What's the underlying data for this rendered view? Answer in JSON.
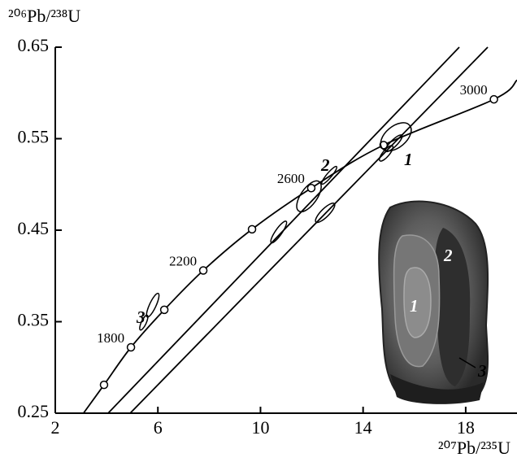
{
  "chart_data": {
    "type": "scatter",
    "x_label": "²⁰⁷Pb/²³⁵U",
    "y_label": "²⁰⁶Pb/²³⁸U",
    "xlim": [
      2,
      20
    ],
    "ylim": [
      0.25,
      0.65
    ],
    "xticks": [
      2,
      6,
      10,
      14,
      18
    ],
    "yticks": [
      0.25,
      0.35,
      0.45,
      0.55,
      0.65
    ],
    "series": [
      {
        "type": "line",
        "color": "#000000",
        "x": [
          3.1,
          3.9,
          4.95,
          6.25,
          7.77,
          9.67,
          11.98,
          14.8,
          19.1,
          20
        ],
        "values": [
          0.25,
          0.281,
          0.322,
          0.363,
          0.406,
          0.451,
          0.496,
          0.543,
          0.593,
          0.614
        ]
      },
      {
        "type": "line",
        "color": "#000000",
        "x": [
          4.06,
          17.75
        ],
        "values": [
          0.25,
          0.65
        ]
      },
      {
        "type": "line",
        "color": "#000000",
        "x": [
          4.92,
          18.86
        ],
        "values": [
          0.25,
          0.65
        ]
      },
      {
        "type": "scatter",
        "color": "#000000",
        "x": [
          3.9,
          4.95,
          6.25,
          7.77,
          9.67,
          11.98,
          14.8,
          19.1
        ],
        "values": [
          0.281,
          0.322,
          0.363,
          0.406,
          0.451,
          0.496,
          0.543,
          0.593
        ],
        "labels": [
          null,
          "1800",
          null,
          "2200",
          null,
          "2600",
          null,
          "3000"
        ]
      },
      {
        "type": "ellipse",
        "color": "#000000",
        "x": [
          15.28,
          14.9,
          15.2,
          11.89,
          12.68,
          12.52,
          10.71,
          5.8,
          5.45
        ],
        "values": [
          0.552,
          0.534,
          0.545,
          0.487,
          0.51,
          0.469,
          0.448,
          0.368,
          0.349
        ]
      }
    ],
    "annotations": [
      "1",
      "2",
      "3"
    ],
    "inset_labels": [
      "1",
      "2",
      "3"
    ]
  }
}
